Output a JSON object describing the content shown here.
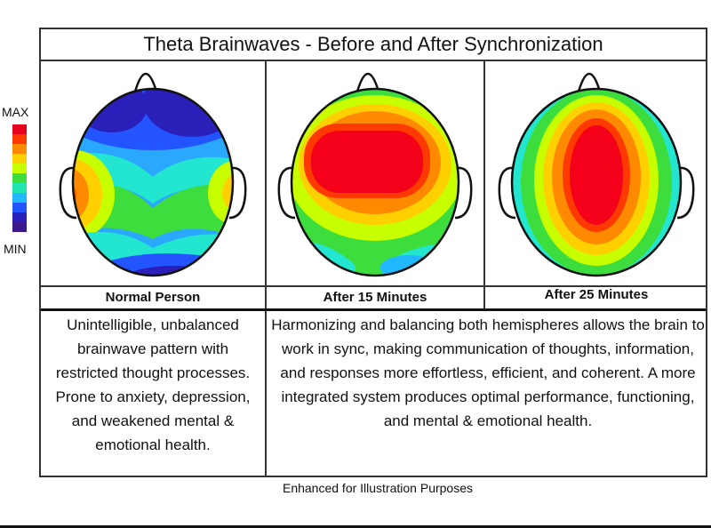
{
  "title": "Theta Brainwaves - Before and After Synchronization",
  "scale": {
    "max_label": "MAX",
    "min_label": "MIN",
    "colors": [
      "#e5001c",
      "#ff3a00",
      "#ff8a00",
      "#ffd000",
      "#c8ff00",
      "#3cdd3c",
      "#22e6b0",
      "#22b8ff",
      "#2255ff",
      "#2a1fb8",
      "#3a1a8a"
    ]
  },
  "panels": [
    {
      "caption": "Normal Person",
      "state": "unbalanced"
    },
    {
      "caption": "After 15 Minutes",
      "state": "partially synchronized"
    },
    {
      "caption": "After 25 Minutes",
      "state": "synchronized"
    }
  ],
  "descriptions": {
    "before": "Unintelligible, unbalanced brainwave pattern with restricted thought processes. Prone to anxiety, depression, and weakened mental & emotional health.",
    "after": "Harmonizing and balancing both hemispheres allows the brain to work in sync, making communication of thoughts, information, and responses more effortless, efficient, and coherent. A more integrated system produces optimal performance, functioning, and mental & emotional health."
  },
  "footnote": "Enhanced for Illustration Purposes"
}
